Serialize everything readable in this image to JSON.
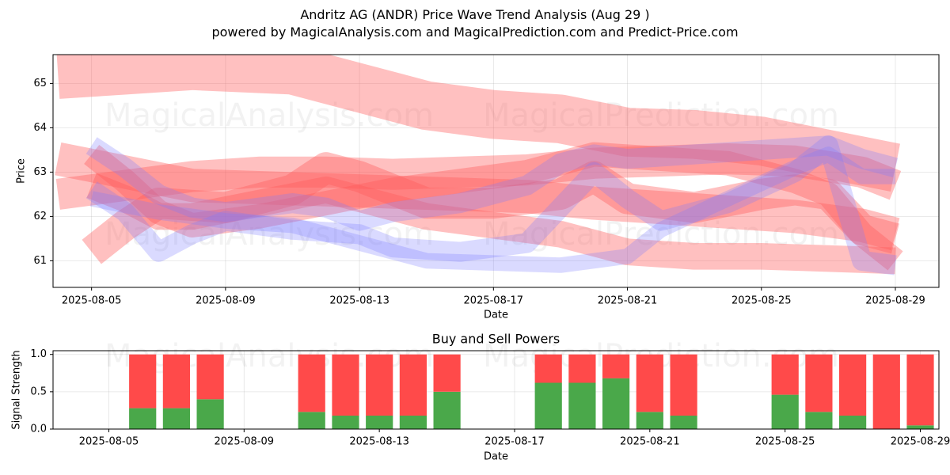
{
  "header": {
    "title": "Andritz AG (ANDR) Price Wave Trend Analysis (Aug 29 )",
    "subtitle": "powered by MagicalAnalysis.com and MagicalPrediction.com and Predict-Price.com"
  },
  "watermarks": [
    "MagicalAnalysis.com",
    "MagicalPrediction.com"
  ],
  "colors": {
    "red_band": "#ff5a5a",
    "blue_band": "#7b7bff",
    "buy": "#4aa84a",
    "sell": "#ff4a4a"
  },
  "chart_data": [
    {
      "type": "area",
      "xlabel": "Date",
      "ylabel": "Price",
      "ylim": [
        60.4,
        65.65
      ],
      "y_ticks": [
        61,
        62,
        63,
        64,
        65
      ],
      "x_ticks": [
        "2025-08-05",
        "2025-08-09",
        "2025-08-13",
        "2025-08-17",
        "2025-08-21",
        "2025-08-25",
        "2025-08-29"
      ],
      "grid": true,
      "series": [
        {
          "color": "red",
          "width": 1.1,
          "points": [
            [
              "2025-08-04",
              65.2
            ],
            [
              "2025-08-06",
              65.3
            ],
            [
              "2025-08-08",
              65.4
            ],
            [
              "2025-08-11",
              65.3
            ],
            [
              "2025-08-13",
              64.9
            ],
            [
              "2025-08-15",
              64.5
            ],
            [
              "2025-08-17",
              64.3
            ],
            [
              "2025-08-19",
              64.2
            ],
            [
              "2025-08-21",
              63.9
            ],
            [
              "2025-08-23",
              63.85
            ],
            [
              "2025-08-25",
              63.7
            ],
            [
              "2025-08-27",
              63.4
            ],
            [
              "2025-08-29",
              63.1
            ]
          ]
        },
        {
          "color": "red",
          "width": 0.75,
          "points": [
            [
              "2025-08-04",
              63.3
            ],
            [
              "2025-08-06",
              63.0
            ],
            [
              "2025-08-08",
              62.7
            ],
            [
              "2025-08-10",
              62.65
            ],
            [
              "2025-08-12",
              62.6
            ],
            [
              "2025-08-14",
              62.55
            ],
            [
              "2025-08-16",
              62.5
            ],
            [
              "2025-08-18",
              62.45
            ],
            [
              "2025-08-20",
              62.3
            ],
            [
              "2025-08-22",
              62.2
            ],
            [
              "2025-08-24",
              62.1
            ],
            [
              "2025-08-26",
              62.0
            ],
            [
              "2025-08-28",
              61.8
            ],
            [
              "2025-08-29",
              61.6
            ]
          ]
        },
        {
          "color": "red",
          "width": 0.7,
          "points": [
            [
              "2025-08-04",
              62.5
            ],
            [
              "2025-08-06",
              62.7
            ],
            [
              "2025-08-08",
              62.9
            ],
            [
              "2025-08-10",
              63.0
            ],
            [
              "2025-08-12",
              63.0
            ],
            [
              "2025-08-14",
              62.95
            ],
            [
              "2025-08-16",
              63.0
            ],
            [
              "2025-08-18",
              63.05
            ],
            [
              "2025-08-20",
              63.2
            ],
            [
              "2025-08-22",
              63.25
            ],
            [
              "2025-08-24",
              63.3
            ],
            [
              "2025-08-26",
              63.25
            ],
            [
              "2025-08-28",
              63.0
            ],
            [
              "2025-08-29",
              62.7
            ]
          ]
        },
        {
          "color": "red",
          "width": 0.6,
          "points": [
            [
              "2025-08-05",
              62.7
            ],
            [
              "2025-08-06",
              62.4
            ],
            [
              "2025-08-07",
              62.0
            ],
            [
              "2025-08-08",
              62.0
            ],
            [
              "2025-08-10",
              62.3
            ],
            [
              "2025-08-12",
              62.6
            ],
            [
              "2025-08-13",
              62.4
            ],
            [
              "2025-08-15",
              62.0
            ],
            [
              "2025-08-17",
              61.8
            ],
            [
              "2025-08-19",
              61.6
            ],
            [
              "2025-08-21",
              61.2
            ],
            [
              "2025-08-23",
              61.1
            ],
            [
              "2025-08-25",
              61.1
            ],
            [
              "2025-08-27",
              61.05
            ],
            [
              "2025-08-29",
              61.0
            ]
          ]
        },
        {
          "color": "red",
          "width": 0.7,
          "points": [
            [
              "2025-08-05",
              61.2
            ],
            [
              "2025-08-06",
              61.8
            ],
            [
              "2025-08-07",
              62.3
            ],
            [
              "2025-08-09",
              62.2
            ],
            [
              "2025-08-11",
              62.6
            ],
            [
              "2025-08-12",
              63.1
            ],
            [
              "2025-08-13",
              62.9
            ],
            [
              "2025-08-15",
              62.3
            ],
            [
              "2025-08-17",
              62.3
            ],
            [
              "2025-08-19",
              62.5
            ],
            [
              "2025-08-20",
              62.9
            ],
            [
              "2025-08-21",
              62.4
            ],
            [
              "2025-08-23",
              62.2
            ],
            [
              "2025-08-25",
              62.5
            ],
            [
              "2025-08-26",
              62.6
            ],
            [
              "2025-08-27",
              62.5
            ],
            [
              "2025-08-28",
              61.7
            ],
            [
              "2025-08-29",
              61.5
            ]
          ]
        },
        {
          "color": "red",
          "width": 0.55,
          "points": [
            [
              "2025-08-05",
              63.4
            ],
            [
              "2025-08-06",
              62.8
            ],
            [
              "2025-08-07",
              62.1
            ],
            [
              "2025-08-08",
              61.8
            ],
            [
              "2025-08-10",
              62.0
            ],
            [
              "2025-08-12",
              62.3
            ],
            [
              "2025-08-14",
              62.6
            ],
            [
              "2025-08-16",
              62.8
            ],
            [
              "2025-08-18",
              63.0
            ],
            [
              "2025-08-20",
              63.4
            ],
            [
              "2025-08-22",
              63.3
            ],
            [
              "2025-08-24",
              63.2
            ],
            [
              "2025-08-26",
              62.8
            ],
            [
              "2025-08-27",
              62.5
            ],
            [
              "2025-08-28",
              61.6
            ],
            [
              "2025-08-29",
              61.0
            ]
          ]
        },
        {
          "color": "blue",
          "width": 0.45,
          "points": [
            [
              "2025-08-05",
              63.6
            ],
            [
              "2025-08-06",
              63.1
            ],
            [
              "2025-08-07",
              62.5
            ],
            [
              "2025-08-08",
              62.2
            ],
            [
              "2025-08-09",
              62.1
            ],
            [
              "2025-08-10",
              62.2
            ],
            [
              "2025-08-11",
              62.3
            ],
            [
              "2025-08-12",
              62.2
            ],
            [
              "2025-08-13",
              61.9
            ],
            [
              "2025-08-14",
              62.1
            ],
            [
              "2025-08-16",
              62.3
            ],
            [
              "2025-08-18",
              62.7
            ],
            [
              "2025-08-19",
              63.2
            ],
            [
              "2025-08-20",
              63.4
            ],
            [
              "2025-08-21",
              63.3
            ],
            [
              "2025-08-23",
              63.4
            ],
            [
              "2025-08-25",
              63.5
            ],
            [
              "2025-08-27",
              63.6
            ],
            [
              "2025-08-28",
              63.3
            ],
            [
              "2025-08-29",
              63.1
            ]
          ]
        },
        {
          "color": "blue",
          "width": 0.45,
          "points": [
            [
              "2025-08-05",
              62.6
            ],
            [
              "2025-08-06",
              62.1
            ],
            [
              "2025-08-07",
              61.2
            ],
            [
              "2025-08-08",
              61.6
            ],
            [
              "2025-08-09",
              61.9
            ],
            [
              "2025-08-11",
              61.7
            ],
            [
              "2025-08-13",
              61.6
            ],
            [
              "2025-08-14",
              61.3
            ],
            [
              "2025-08-16",
              61.2
            ],
            [
              "2025-08-18",
              61.4
            ],
            [
              "2025-08-19",
              62.2
            ],
            [
              "2025-08-20",
              63.0
            ],
            [
              "2025-08-21",
              62.4
            ],
            [
              "2025-08-22",
              61.9
            ],
            [
              "2025-08-24",
              62.3
            ],
            [
              "2025-08-26",
              63.0
            ],
            [
              "2025-08-27",
              63.6
            ],
            [
              "2025-08-28",
              61.0
            ],
            [
              "2025-08-29",
              60.9
            ]
          ]
        },
        {
          "color": "blue",
          "width": 0.35,
          "points": [
            [
              "2025-08-05",
              62.4
            ],
            [
              "2025-08-07",
              62.1
            ],
            [
              "2025-08-09",
              61.9
            ],
            [
              "2025-08-11",
              61.8
            ],
            [
              "2025-08-13",
              61.4
            ],
            [
              "2025-08-15",
              61.0
            ],
            [
              "2025-08-17",
              60.95
            ],
            [
              "2025-08-19",
              60.9
            ],
            [
              "2025-08-21",
              61.1
            ],
            [
              "2025-08-22",
              61.7
            ],
            [
              "2025-08-24",
              62.4
            ],
            [
              "2025-08-26",
              63.1
            ],
            [
              "2025-08-27",
              63.4
            ],
            [
              "2025-08-28",
              62.9
            ],
            [
              "2025-08-29",
              62.9
            ]
          ]
        }
      ]
    },
    {
      "type": "bar",
      "title": "Buy and Sell Powers",
      "xlabel": "Date",
      "ylabel": "Signal Strength",
      "ylim": [
        0,
        1.05
      ],
      "y_ticks": [
        "0.0",
        "0.5",
        "1.0"
      ],
      "x_ticks": [
        "2025-08-05",
        "2025-08-09",
        "2025-08-13",
        "2025-08-17",
        "2025-08-21",
        "2025-08-25",
        "2025-08-29"
      ],
      "grid": true,
      "categories": [
        "2025-08-06",
        "2025-08-07",
        "2025-08-08",
        "2025-08-11",
        "2025-08-12",
        "2025-08-13",
        "2025-08-14",
        "2025-08-15",
        "2025-08-18",
        "2025-08-19",
        "2025-08-20",
        "2025-08-21",
        "2025-08-22",
        "2025-08-25",
        "2025-08-26",
        "2025-08-27",
        "2025-08-28",
        "2025-08-29"
      ],
      "series": [
        {
          "name": "Buy",
          "values": [
            0.28,
            0.28,
            0.4,
            0.23,
            0.18,
            0.18,
            0.18,
            0.5,
            0.62,
            0.62,
            0.68,
            0.23,
            0.18,
            0.46,
            0.23,
            0.18,
            0.0,
            0.05
          ]
        },
        {
          "name": "Sell",
          "values": [
            0.72,
            0.72,
            0.6,
            0.77,
            0.82,
            0.82,
            0.82,
            0.5,
            0.38,
            0.38,
            0.32,
            0.77,
            0.82,
            0.54,
            0.77,
            0.82,
            1.0,
            0.95
          ]
        }
      ]
    }
  ]
}
